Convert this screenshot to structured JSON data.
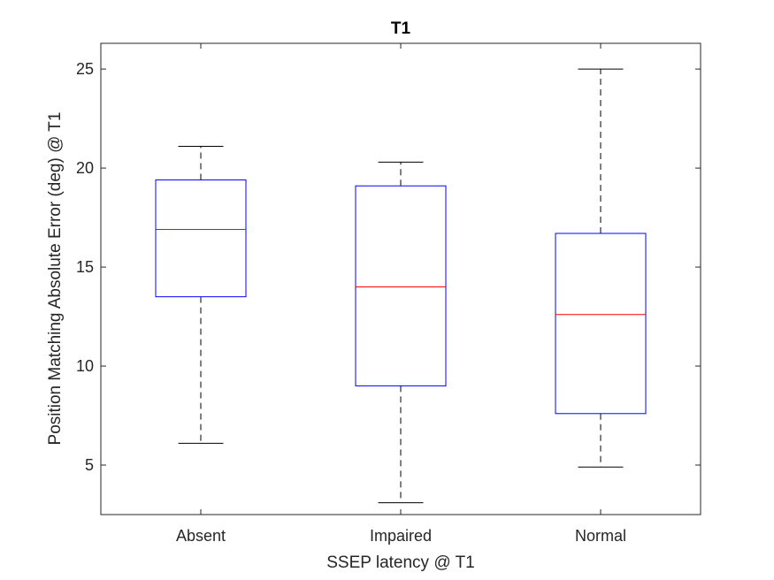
{
  "chart_data": {
    "type": "box",
    "title": "T1",
    "xlabel": "SSEP latency @ T1",
    "ylabel": "Position Matching Absolute Error (deg) @ T1",
    "categories": [
      "Absent",
      "Impaired",
      "Normal"
    ],
    "ylim": [
      2.5,
      26.3
    ],
    "yticks": [
      5,
      10,
      15,
      20,
      25
    ],
    "grid": false,
    "boxes": [
      {
        "category": "Absent",
        "whisker_low": 6.1,
        "q1": 13.5,
        "median": 16.9,
        "q3": 19.4,
        "whisker_high": 21.1
      },
      {
        "category": "Impaired",
        "whisker_low": 3.1,
        "q1": 9.0,
        "median": 14.0,
        "q3": 19.1,
        "whisker_high": 20.3
      },
      {
        "category": "Normal",
        "whisker_low": 4.9,
        "q1": 7.6,
        "median": 12.6,
        "q3": 16.7,
        "whisker_high": 25.0
      }
    ],
    "colors": {
      "box": "#0000ff",
      "median": "#ff0000",
      "whisker": "#000000",
      "axis": "#262626"
    }
  }
}
